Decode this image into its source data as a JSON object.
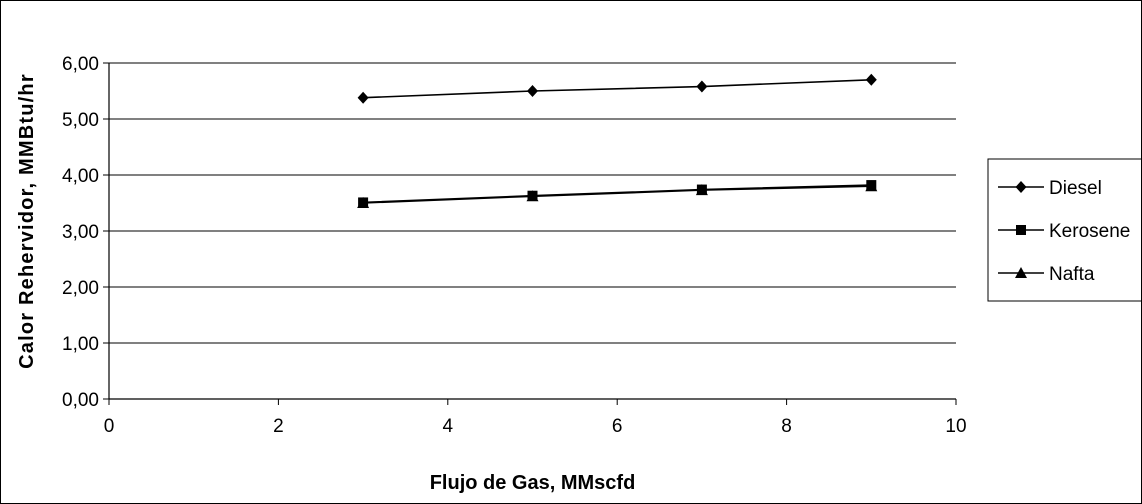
{
  "chart_data": {
    "type": "line",
    "title": "",
    "xlabel": "Flujo de Gas, MMscfd",
    "ylabel": "Calor Rehervidor, MMBtu/hr",
    "xlim": [
      0,
      10
    ],
    "ylim": [
      0,
      6
    ],
    "x_ticks": [
      0,
      2,
      4,
      6,
      8,
      10
    ],
    "x_tick_labels": [
      "0",
      "2",
      "4",
      "6",
      "8",
      "10"
    ],
    "y_ticks": [
      0,
      1,
      2,
      3,
      4,
      5,
      6
    ],
    "y_tick_labels": [
      "0,00",
      "1,00",
      "2,00",
      "3,00",
      "4,00",
      "5,00",
      "6,00"
    ],
    "grid": "horizontal",
    "legend_position": "right",
    "x": [
      3,
      5,
      7,
      9
    ],
    "series": [
      {
        "name": "Diesel",
        "marker": "diamond",
        "values": [
          5.38,
          5.5,
          5.58,
          5.7
        ]
      },
      {
        "name": "Kerosene",
        "marker": "square",
        "values": [
          3.51,
          3.63,
          3.74,
          3.82
        ]
      },
      {
        "name": "Nafta",
        "marker": "triangle",
        "values": [
          3.5,
          3.62,
          3.73,
          3.8
        ]
      }
    ]
  }
}
